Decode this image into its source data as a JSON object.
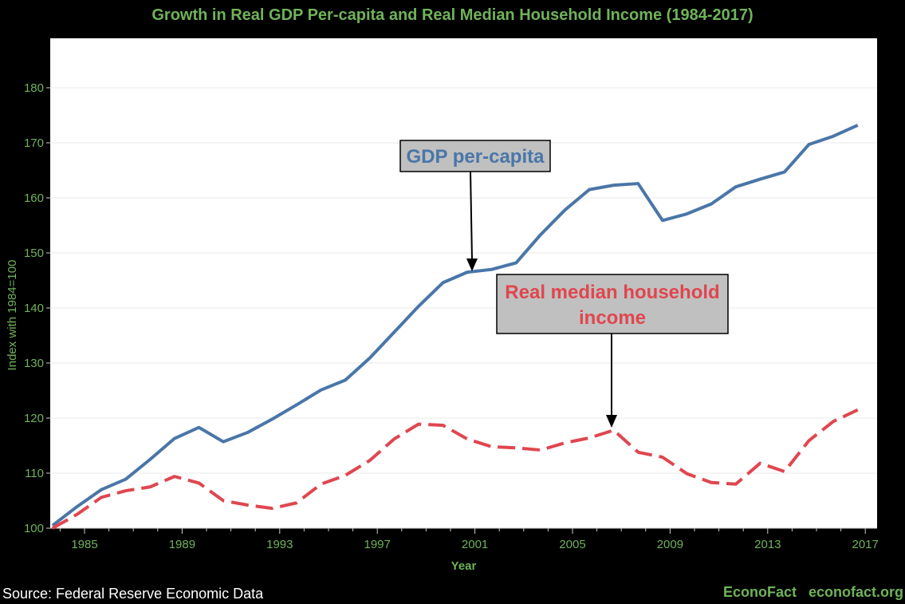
{
  "chart_data": {
    "type": "line",
    "title": "Growth in Real GDP Per-capita and Real Median Household Income (1984-2017)",
    "xlabel": "Year",
    "ylabel": "Index with 1984=100",
    "xlim": [
      1984,
      2017
    ],
    "ylim": [
      100,
      190
    ],
    "xticks": [
      1985,
      1989,
      1993,
      1997,
      2001,
      2005,
      2009,
      2013,
      2017
    ],
    "yticks": [
      100,
      110,
      120,
      130,
      140,
      150,
      160,
      170,
      180
    ],
    "grid": true,
    "x": [
      1984,
      1985,
      1986,
      1987,
      1988,
      1989,
      1990,
      1991,
      1992,
      1993,
      1994,
      1995,
      1996,
      1997,
      1998,
      1999,
      2000,
      2001,
      2002,
      2003,
      2004,
      2005,
      2006,
      2007,
      2008,
      2009,
      2010,
      2011,
      2012,
      2013,
      2014,
      2015,
      2016,
      2017
    ],
    "series": [
      {
        "name": "GDP per-capita",
        "color": "#4a76a8",
        "style": "solid",
        "values": [
          100.5,
          103.9,
          107.0,
          108.9,
          112.5,
          116.3,
          118.3,
          115.7,
          117.4,
          119.8,
          122.4,
          125.1,
          126.9,
          130.9,
          135.6,
          140.3,
          144.6,
          146.5,
          147.0,
          148.2,
          153.3,
          157.8,
          161.5,
          162.3,
          162.6,
          155.9,
          157.1,
          158.9,
          162.0,
          163.4,
          164.7,
          169.7,
          171.2,
          173.2
        ]
      },
      {
        "name": "Real median household income",
        "color": "#e0464f",
        "style": "dashed",
        "values": [
          100.0,
          102.5,
          105.6,
          106.8,
          107.5,
          109.4,
          108.2,
          105.0,
          104.2,
          103.6,
          104.6,
          108.0,
          109.6,
          112.3,
          116.2,
          118.9,
          118.7,
          116.2,
          114.8,
          114.6,
          114.2,
          115.5,
          116.4,
          117.8,
          113.8,
          112.9,
          109.9,
          108.3,
          108.0,
          111.8,
          110.3,
          115.9,
          119.4,
          121.5
        ]
      }
    ],
    "annotations": [
      {
        "text": "GDP per-capita",
        "color": "#4a76a8",
        "points_to": [
          2001,
          146.5
        ]
      },
      {
        "text_lines": [
          "Real median household",
          "income"
        ],
        "color": "#e0464f",
        "points_to": [
          2007,
          117.8
        ]
      }
    ]
  },
  "footer": {
    "source": "Source: Federal Reserve Economic Data",
    "brand": "EconoFact   econofact.org"
  }
}
